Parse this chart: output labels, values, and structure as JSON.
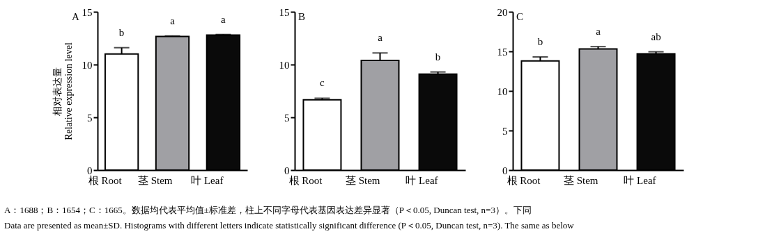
{
  "chart_data": [
    {
      "type": "bar",
      "title": "A",
      "ylabel": "相对表达量\nRelative expression level",
      "categories": [
        "根 Root",
        "茎 Stem",
        "叶 Leaf"
      ],
      "values": [
        11.0,
        12.66,
        12.8
      ],
      "errors": [
        0.6,
        0.05,
        0.05
      ],
      "colors": [
        "#ffffff",
        "#a0a0a4",
        "#0a0a0a"
      ],
      "ylim": [
        0,
        15
      ],
      "yticks": [
        0,
        5,
        10,
        15
      ],
      "grid": false,
      "legend": false,
      "annotations": [
        "b",
        "a",
        "a",
        "A：1688；B：1654；C：1665。数据均代表平均值±标准差，柱上不同字母代表基因表达差异显著（P＜0.05, Duncan test, n=3）。下同",
        "Data are presented as mean±SD. Histograms with different letters indicate statistically significant difference (P＜0.05, Duncan test, n=3). The same as below"
      ]
    },
    {
      "type": "bar",
      "title": "B",
      "categories": [
        "根 Root",
        "茎 Stem",
        "叶 Leaf"
      ],
      "values": [
        6.66,
        10.4,
        9.1
      ],
      "errors": [
        0.15,
        0.7,
        0.2
      ],
      "colors": [
        "#ffffff",
        "#a0a0a4",
        "#0a0a0a"
      ],
      "ylim": [
        0,
        15
      ],
      "yticks": [
        0,
        5,
        10,
        15
      ],
      "grid": false,
      "legend": false,
      "annotations": [
        "c",
        "a",
        "b"
      ]
    },
    {
      "type": "bar",
      "title": "C",
      "categories": [
        "根 Root",
        "茎 Stem",
        "叶 Leaf"
      ],
      "values": [
        13.8,
        15.3,
        14.7
      ],
      "errors": [
        0.5,
        0.3,
        0.25
      ],
      "colors": [
        "#ffffff",
        "#a0a0a4",
        "#0a0a0a"
      ],
      "ylim": [
        0,
        20
      ],
      "yticks": [
        0,
        5,
        10,
        15,
        20
      ],
      "grid": false,
      "legend": false,
      "annotations": [
        "b",
        "a",
        "ab"
      ]
    }
  ]
}
